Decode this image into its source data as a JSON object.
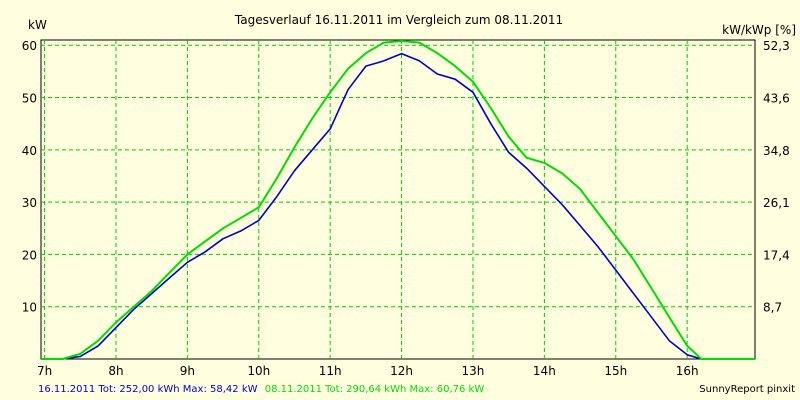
{
  "chart_data": {
    "type": "line",
    "title": "Tagesverlauf 16.11.2011 im Vergleich zum 08.11.2011",
    "ylabel_left": "kW",
    "ylabel_right": "kW/kWp [%]",
    "xlim": [
      6.95,
      16.95
    ],
    "ylim": [
      0,
      61
    ],
    "x_ticks": [
      {
        "value": 7,
        "label": "7h"
      },
      {
        "value": 8,
        "label": "8h"
      },
      {
        "value": 9,
        "label": "9h"
      },
      {
        "value": 10,
        "label": "10h"
      },
      {
        "value": 11,
        "label": "11h"
      },
      {
        "value": 12,
        "label": "12h"
      },
      {
        "value": 13,
        "label": "13h"
      },
      {
        "value": 14,
        "label": "14h"
      },
      {
        "value": 15,
        "label": "15h"
      },
      {
        "value": 16,
        "label": "16h"
      }
    ],
    "y_ticks_left": [
      {
        "value": 10,
        "label": "10"
      },
      {
        "value": 20,
        "label": "20"
      },
      {
        "value": 30,
        "label": "30"
      },
      {
        "value": 40,
        "label": "40"
      },
      {
        "value": 50,
        "label": "50"
      },
      {
        "value": 60,
        "label": "60"
      }
    ],
    "y_ticks_right": [
      {
        "value": 10,
        "label": "8,7"
      },
      {
        "value": 20,
        "label": "17,4"
      },
      {
        "value": 30,
        "label": "26,1"
      },
      {
        "value": 40,
        "label": "34,8"
      },
      {
        "value": 50,
        "label": "43,6"
      },
      {
        "value": 60,
        "label": "52,3"
      }
    ],
    "grid": true,
    "series": [
      {
        "name": "16.11.2011",
        "color": "#0000cc",
        "points": [
          [
            6.95,
            0
          ],
          [
            7.25,
            0
          ],
          [
            7.5,
            0.5
          ],
          [
            7.75,
            2.5
          ],
          [
            8.0,
            6
          ],
          [
            8.25,
            9.5
          ],
          [
            8.5,
            12.5
          ],
          [
            8.75,
            15.5
          ],
          [
            9.0,
            18.5
          ],
          [
            9.25,
            20.5
          ],
          [
            9.5,
            23
          ],
          [
            9.75,
            24.5
          ],
          [
            10.0,
            26.5
          ],
          [
            10.25,
            31
          ],
          [
            10.5,
            36
          ],
          [
            10.75,
            40
          ],
          [
            11.0,
            44
          ],
          [
            11.25,
            51.5
          ],
          [
            11.5,
            56
          ],
          [
            11.75,
            57
          ],
          [
            12.0,
            58.4
          ],
          [
            12.25,
            57
          ],
          [
            12.5,
            54.5
          ],
          [
            12.75,
            53.5
          ],
          [
            13.0,
            51
          ],
          [
            13.25,
            45
          ],
          [
            13.5,
            39.5
          ],
          [
            13.75,
            36.5
          ],
          [
            14.0,
            33
          ],
          [
            14.25,
            29.5
          ],
          [
            14.5,
            25.5
          ],
          [
            14.75,
            21.5
          ],
          [
            15.0,
            17
          ],
          [
            15.25,
            12.5
          ],
          [
            15.5,
            8
          ],
          [
            15.75,
            3.5
          ],
          [
            16.0,
            0.8
          ],
          [
            16.2,
            0
          ],
          [
            16.95,
            0
          ]
        ]
      },
      {
        "name": "08.11.2011",
        "color": "#00dd00",
        "points": [
          [
            6.95,
            0
          ],
          [
            7.25,
            0
          ],
          [
            7.5,
            1
          ],
          [
            7.75,
            3.5
          ],
          [
            8.0,
            7
          ],
          [
            8.25,
            10
          ],
          [
            8.5,
            13
          ],
          [
            8.75,
            16.5
          ],
          [
            9.0,
            20
          ],
          [
            9.25,
            22.5
          ],
          [
            9.5,
            25
          ],
          [
            9.75,
            27
          ],
          [
            10.0,
            29
          ],
          [
            10.25,
            34.5
          ],
          [
            10.5,
            40.5
          ],
          [
            10.75,
            46
          ],
          [
            11.0,
            51
          ],
          [
            11.25,
            55.5
          ],
          [
            11.5,
            58.5
          ],
          [
            11.75,
            60.5
          ],
          [
            12.0,
            60.8
          ],
          [
            12.25,
            60.5
          ],
          [
            12.5,
            58.5
          ],
          [
            12.75,
            56
          ],
          [
            13.0,
            53
          ],
          [
            13.25,
            48
          ],
          [
            13.5,
            42.5
          ],
          [
            13.75,
            38.5
          ],
          [
            14.0,
            37.5
          ],
          [
            14.25,
            35.5
          ],
          [
            14.5,
            32.5
          ],
          [
            14.75,
            28
          ],
          [
            15.0,
            23.5
          ],
          [
            15.25,
            19
          ],
          [
            15.5,
            13.5
          ],
          [
            15.75,
            8
          ],
          [
            16.0,
            2.5
          ],
          [
            16.2,
            0
          ],
          [
            16.95,
            0
          ]
        ]
      }
    ]
  },
  "colors": {
    "background": "#ffffe0",
    "plot_border": "#000000",
    "grid": "#00cc00"
  },
  "footer": {
    "summary_1": "16.11.2011 Tot: 252,00 kWh Max: 58,42 kW",
    "summary_1_color": "#0000cc",
    "summary_2": "08.11.2011 Tot: 290,64 kWh Max: 60,76 kW",
    "summary_2_color": "#00dd00",
    "credit": "SunnyReport pinxit"
  }
}
